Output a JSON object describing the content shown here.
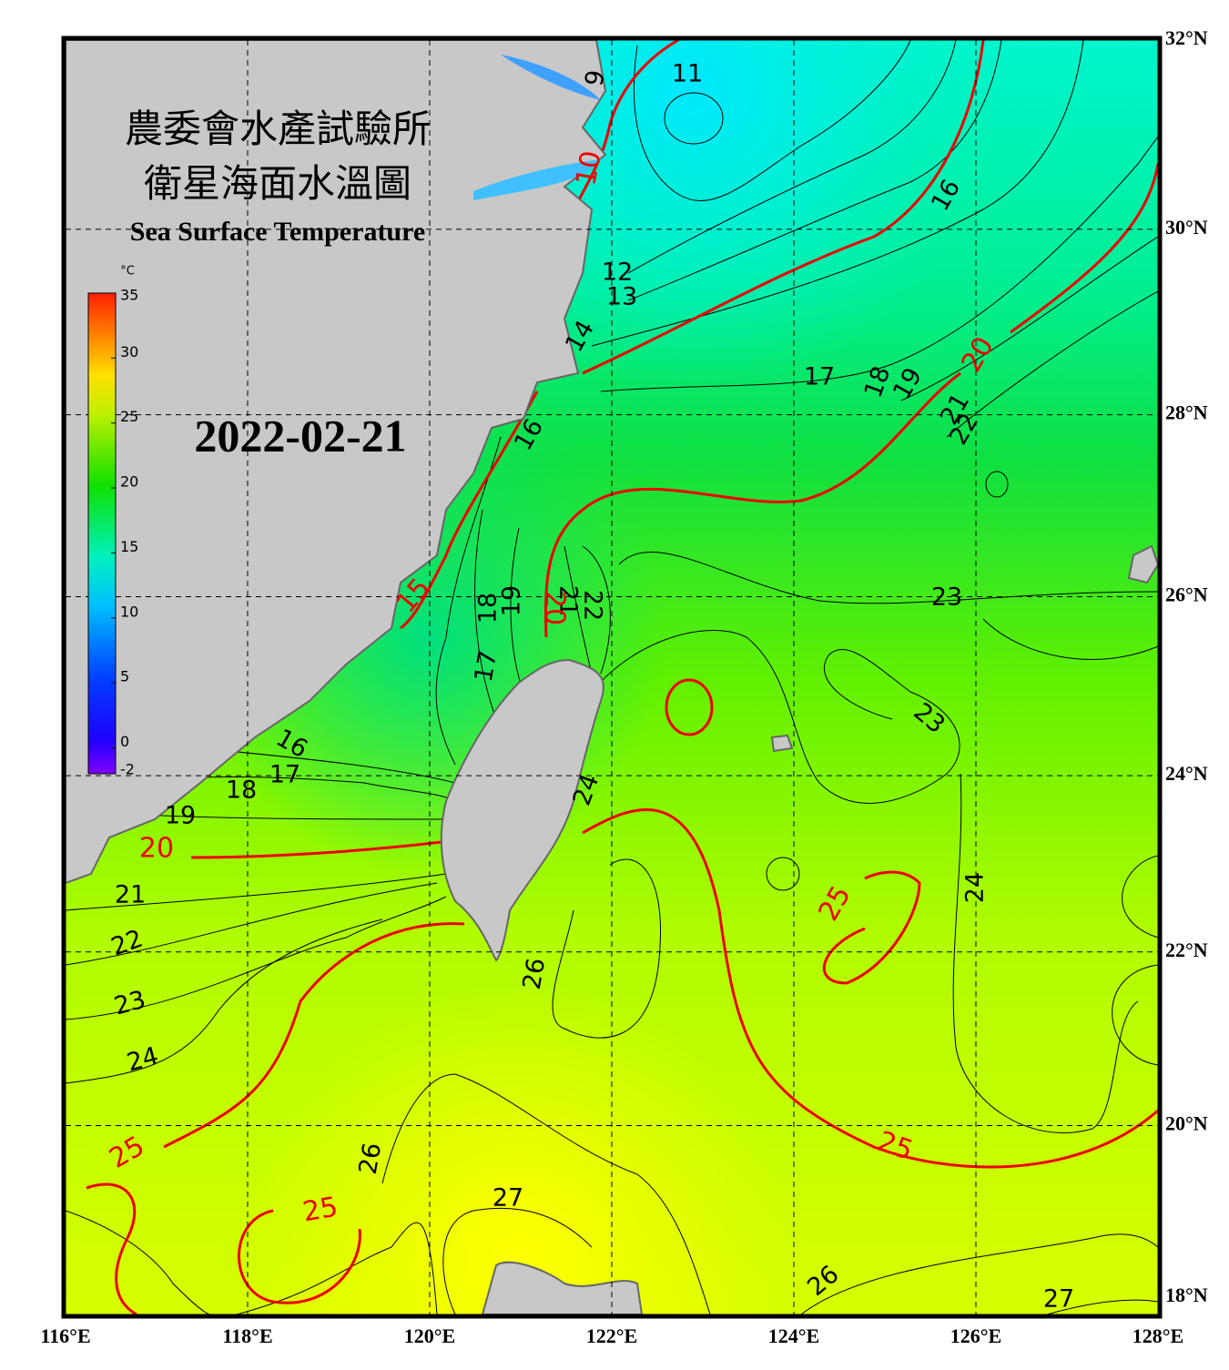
{
  "chart_data": {
    "type": "map",
    "title": "農委會水產試驗所",
    "subtitle": "衛星海面水溫圖",
    "english_title": "Sea Surface Temperature",
    "date": "2022-02-21",
    "xlim": [
      116,
      128
    ],
    "ylim": [
      18,
      32
    ],
    "xticks": [
      {
        "value": 116,
        "label": "116°E"
      },
      {
        "value": 118,
        "label": "118°E"
      },
      {
        "value": 120,
        "label": "120°E"
      },
      {
        "value": 122,
        "label": "122°E"
      },
      {
        "value": 124,
        "label": "124°E"
      },
      {
        "value": 126,
        "label": "126°E"
      },
      {
        "value": 128,
        "label": "128°E"
      }
    ],
    "yticks": [
      {
        "value": 18,
        "label": "18°N"
      },
      {
        "value": 20,
        "label": "20°N"
      },
      {
        "value": 22,
        "label": "22°N"
      },
      {
        "value": 24,
        "label": "24°N"
      },
      {
        "value": 26,
        "label": "26°N"
      },
      {
        "value": 28,
        "label": "28°N"
      },
      {
        "value": 30,
        "label": "30°N"
      },
      {
        "value": 32,
        "label": "32°N"
      }
    ],
    "grid": true,
    "colorbar": {
      "unit": "°C",
      "lim": [
        -2,
        35
      ],
      "ticks": [
        -2,
        0,
        5,
        10,
        15,
        20,
        25,
        30,
        35
      ]
    },
    "contour_labels": [
      11,
      9,
      16,
      12,
      13,
      14,
      17,
      18,
      19,
      21,
      22,
      16,
      23,
      18,
      19,
      21,
      22,
      17,
      23,
      16,
      17,
      18,
      19,
      24,
      21,
      22,
      23,
      24,
      26,
      24,
      26,
      27,
      26,
      27
    ],
    "major_contour_labels": [
      10,
      15,
      20,
      20,
      20,
      25,
      25,
      25,
      25
    ]
  }
}
